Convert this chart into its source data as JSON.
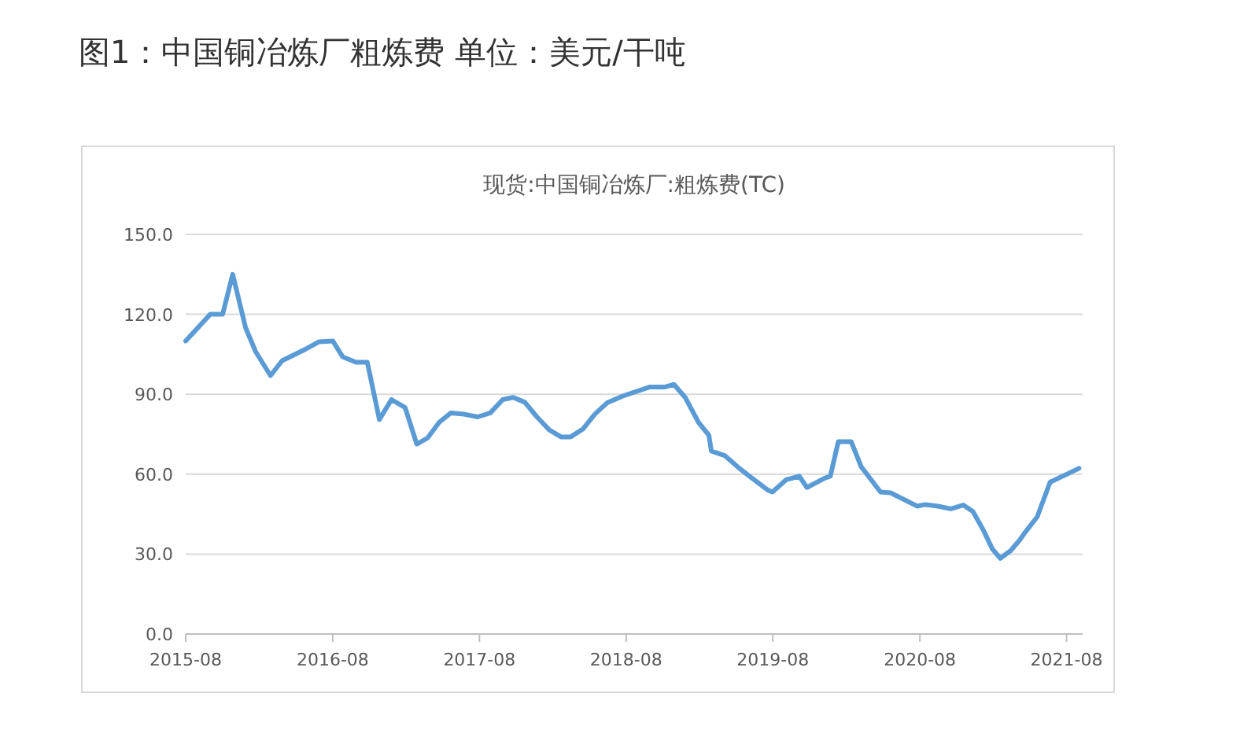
{
  "chart_data": {
    "type": "line",
    "title": "图1：中国铜冶炼厂粗炼费 单位：美元/干吨",
    "subtitle": "现货:中国铜冶炼厂:粗炼费(TC)",
    "x": [
      "2015-08-01",
      "2015-10-01",
      "2015-11-01",
      "2015-11-26",
      "2015-12-28",
      "2016-01-22",
      "2016-02-28",
      "2016-03-28",
      "2016-05-20",
      "2016-06-28",
      "2016-08-01",
      "2016-08-26",
      "2016-09-28",
      "2016-10-26",
      "2016-11-25",
      "2016-12-25",
      "2017-01-28",
      "2017-02-26",
      "2017-03-25",
      "2017-04-23",
      "2017-05-22",
      "2017-06-24",
      "2017-07-28",
      "2017-08-28",
      "2017-09-28",
      "2017-10-24",
      "2017-11-22",
      "2017-12-22",
      "2018-01-22",
      "2018-02-20",
      "2018-03-16",
      "2018-04-16",
      "2018-05-15",
      "2018-06-15",
      "2018-07-25",
      "2018-09-28",
      "2018-11-05",
      "2018-11-28",
      "2018-12-26",
      "2019-01-28",
      "2019-02-23",
      "2019-03-01",
      "2019-04-03",
      "2019-05-05",
      "2019-06-07",
      "2019-07-20",
      "2019-07-31",
      "2019-09-03",
      "2019-10-06",
      "2019-10-25",
      "2019-12-08",
      "2019-12-22",
      "2020-01-11",
      "2020-02-12",
      "2020-03-08",
      "2020-04-25",
      "2020-05-20",
      "2020-07-25",
      "2020-08-14",
      "2020-09-15",
      "2020-10-17",
      "2020-11-17",
      "2020-12-11",
      "2021-01-06",
      "2021-01-28",
      "2021-02-17",
      "2021-03-15",
      "2021-04-06",
      "2021-04-19",
      "2021-05-20",
      "2021-06-21",
      "2021-09-01"
    ],
    "values": [
      110,
      120,
      120,
      135,
      115,
      106,
      97,
      102.6,
      106.5,
      109.7,
      110,
      104,
      102,
      102,
      80.5,
      88,
      85,
      71.3,
      73.6,
      79.5,
      83,
      82.5,
      81.5,
      83,
      88,
      88.8,
      87,
      81.5,
      76.6,
      74,
      74,
      77,
      82.5,
      86.8,
      89.4,
      92.7,
      92.7,
      93.7,
      88.8,
      79.5,
      74.6,
      68.7,
      67,
      62.8,
      58.9,
      54,
      53.3,
      57.9,
      59.2,
      55,
      58.5,
      59.2,
      72.2,
      72.2,
      62.8,
      53.3,
      53,
      48,
      48.6,
      48,
      47,
      48.4,
      46,
      39,
      32,
      28.4,
      31.3,
      35.2,
      38,
      44,
      57,
      62.2
    ],
    "color": "#5b9bd5",
    "xlim": [
      "2015-08-01",
      "2021-09-10"
    ],
    "xticks": [
      {
        "value": "2015-08-01",
        "label": "2015-08"
      },
      {
        "value": "2016-08-01",
        "label": "2016-08"
      },
      {
        "value": "2017-08-01",
        "label": "2017-08"
      },
      {
        "value": "2018-08-01",
        "label": "2018-08"
      },
      {
        "value": "2019-08-01",
        "label": "2019-08"
      },
      {
        "value": "2020-08-01",
        "label": "2020-08"
      },
      {
        "value": "2021-08-01",
        "label": "2021-08"
      }
    ],
    "ylim": [
      0,
      150
    ],
    "yticks": [
      {
        "value": 0,
        "label": "0.0"
      },
      {
        "value": 30,
        "label": "30.0"
      },
      {
        "value": 60,
        "label": "60.0"
      },
      {
        "value": 90,
        "label": "90.0"
      },
      {
        "value": 120,
        "label": "120.0"
      },
      {
        "value": 150,
        "label": "150.0"
      }
    ],
    "grid": "y",
    "line_style": "solid"
  }
}
